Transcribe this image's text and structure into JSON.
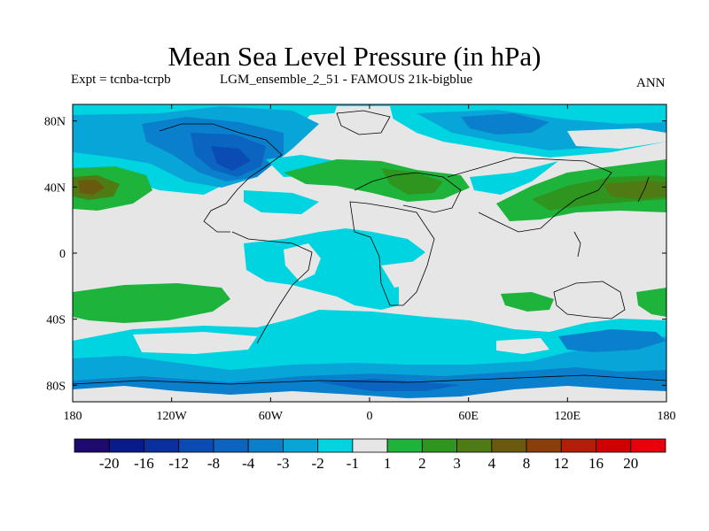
{
  "header": {
    "title": "Mean Sea Level Pressure (in hPa)",
    "expt": "Expt = tcnba-tcrpb",
    "run": "LGM_ensemble_2_51 - FAMOUS 21k-bigblue",
    "season": "ANN"
  },
  "axes": {
    "lat_labels": [
      "80N",
      "40N",
      "0",
      "40S",
      "80S"
    ],
    "lat_values": [
      80,
      40,
      0,
      -40,
      -80
    ],
    "lon_labels": [
      "180",
      "120W",
      "60W",
      "0",
      "60E",
      "120E",
      "180"
    ],
    "lon_values": [
      -180,
      -120,
      -60,
      0,
      60,
      120,
      180
    ],
    "lat_range": [
      -90,
      90
    ],
    "lon_range": [
      -180,
      180
    ]
  },
  "colorbar": {
    "labels": [
      "-20",
      "-16",
      "-12",
      "-8",
      "-4",
      "-3",
      "-2",
      "-1",
      "1",
      "2",
      "3",
      "4",
      "8",
      "12",
      "16",
      "20"
    ],
    "colors": [
      "#1e0a6e",
      "#0a1a8c",
      "#0a30a0",
      "#0a4cb4",
      "#0a64c0",
      "#0a80cc",
      "#08a6d8",
      "#00d4e0",
      "#e6e6e6",
      "#1eb43c",
      "#2e961e",
      "#4f7a14",
      "#6a5a0e",
      "#8a3e0a",
      "#b21e08",
      "#d00000",
      "#e8000a"
    ]
  },
  "colors": {
    "neutral": "#e6e6e6",
    "cyan": "#00d4e0",
    "light_blue": "#08a6d8",
    "mid_blue": "#0a80cc",
    "dark_blue": "#0a64c0",
    "deep_blue": "#0a4cb4",
    "green": "#1eb43c",
    "dark_green": "#2e961e",
    "olive": "#4f7a14",
    "brown": "#6a5a0e"
  }
}
